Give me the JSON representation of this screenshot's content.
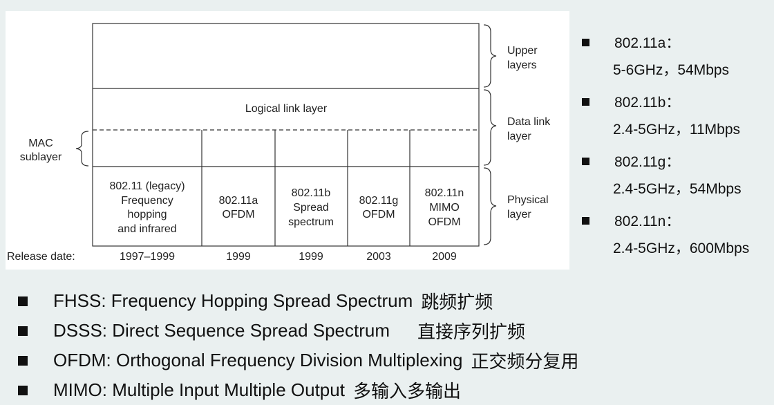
{
  "diagram": {
    "upper_layers": [
      "Upper",
      "layers"
    ],
    "data_link_layer": [
      "Data link",
      "layer"
    ],
    "physical_layer": [
      "Physical",
      "layer"
    ],
    "mac_sublayer": [
      "MAC",
      "sublayer"
    ],
    "logical_link": "Logical link layer",
    "release_label": "Release date:",
    "columns": [
      {
        "lines": [
          "802.11 (legacy)",
          "Frequency",
          "hopping",
          "and infrared"
        ],
        "date": "1997–1999"
      },
      {
        "lines": [
          "802.11a",
          "OFDM"
        ],
        "date": "1999"
      },
      {
        "lines": [
          "802.11b",
          "Spread",
          "spectrum"
        ],
        "date": "1999"
      },
      {
        "lines": [
          "802.11g",
          "OFDM"
        ],
        "date": "2003"
      },
      {
        "lines": [
          "802.11n",
          "MIMO",
          "OFDM"
        ],
        "date": "2009"
      }
    ]
  },
  "standards": [
    {
      "name": "802.11a：",
      "spec": "5-6GHz，54Mbps"
    },
    {
      "name": "802.11b：",
      "spec": "2.4-5GHz，11Mbps"
    },
    {
      "name": "802.11g：",
      "spec": "2.4-5GHz，54Mbps"
    },
    {
      "name": "802.11n：",
      "spec": "2.4-5GHz，600Mbps"
    }
  ],
  "terms": [
    {
      "en": "FHSS: Frequency Hopping Spread Spectrum",
      "zh": "跳频扩频"
    },
    {
      "en": "DSSS: Direct Sequence Spread Spectrum",
      "zh": "直接序列扩频"
    },
    {
      "en": "OFDM: Orthogonal Frequency Division Multiplexing",
      "zh": "正交频分复用"
    },
    {
      "en": "MIMO: Multiple Input Multiple Output",
      "zh": "多输入多输出"
    }
  ]
}
